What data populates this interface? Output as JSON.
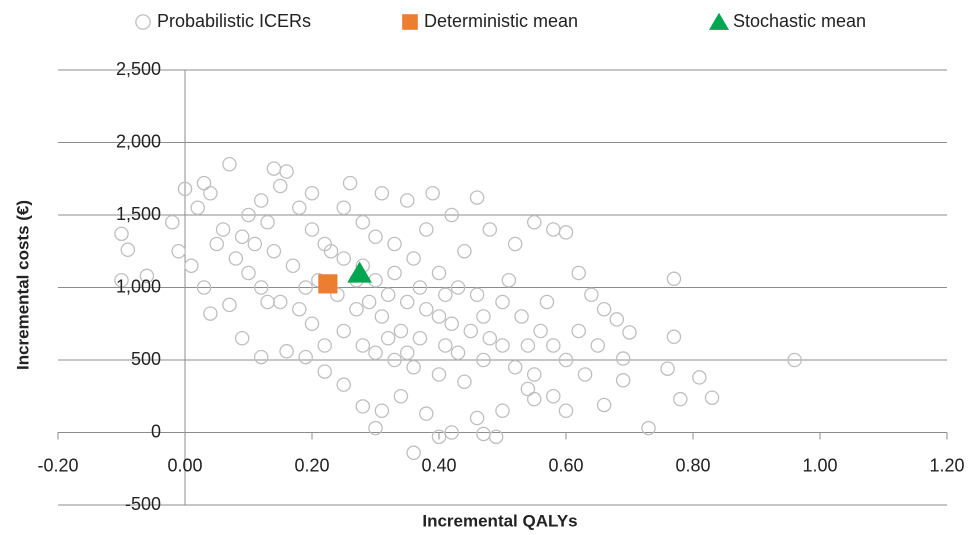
{
  "chart_data": {
    "type": "scatter",
    "x_label": "Incremental QALYs",
    "y_label": "Incremental costs (€)",
    "xlim": [
      -0.2,
      1.2
    ],
    "ylim": [
      -500,
      2500
    ],
    "xticks": [
      {
        "value": -0.2,
        "label": "-0.20"
      },
      {
        "value": 0,
        "label": "0.00"
      },
      {
        "value": 0.2,
        "label": "0.20"
      },
      {
        "value": 0.4,
        "label": "0.40"
      },
      {
        "value": 0.6,
        "label": "0.60"
      },
      {
        "value": 0.8,
        "label": "0.80"
      },
      {
        "value": 1.0,
        "label": "1.00"
      },
      {
        "value": 1.2,
        "label": "1.20"
      }
    ],
    "yticks": [
      -500,
      0,
      500,
      {
        "value": 1000,
        "label": "1,000"
      },
      {
        "value": 1500,
        "label": "1,500"
      },
      {
        "value": 2000,
        "label": "2,000"
      },
      {
        "value": 2500,
        "label": "2,500"
      }
    ],
    "grid": true,
    "legend": "top",
    "series": [
      {
        "name": "Probabilistic ICERs",
        "color": "#bfbfbf",
        "marker": "circle",
        "x": [
          0.1,
          0.12,
          0.15,
          0.13,
          0.18,
          0.2,
          0.22,
          0.25,
          0.28,
          0.3,
          0.32,
          0.35,
          0.38,
          0.4,
          0.42,
          0.45,
          0.48,
          0.5,
          0.05,
          0.08,
          0.1,
          0.12,
          0.15,
          0.18,
          0.2,
          0.25,
          0.28,
          0.3,
          0.33,
          0.36,
          0.4,
          0.44,
          0.2,
          0.25,
          0.28,
          0.3,
          0.33,
          0.36,
          0.4,
          0.43,
          0.46,
          0.5,
          0.53,
          0.56,
          0.58,
          0.6,
          0.02,
          0.04,
          0.06,
          0.09,
          0.14,
          0.17,
          0.21,
          0.24,
          0.27,
          0.31,
          0.34,
          0.37,
          0.41,
          0.43,
          0.47,
          0.52,
          0.55,
          0.16,
          0.14,
          0.26,
          0.31,
          0.35,
          0.39,
          0.46,
          0.42,
          0.48,
          0.52,
          0.55,
          0.58,
          0.6,
          0.62,
          0.64,
          0.66,
          0.68,
          0.62,
          0.65,
          0.63,
          0.6,
          0.58,
          0.54,
          0.5,
          0.46,
          0.42,
          0.38,
          0.34,
          0.31,
          0.28,
          0.25,
          0.22,
          0.19,
          0.16,
          0.12,
          0.09,
          0.07,
          0.04,
          0.03,
          0.01,
          -0.01,
          -0.02,
          0.0,
          0.03,
          -0.1,
          -0.1,
          -0.09,
          -0.06,
          0.07,
          0.3,
          0.36,
          0.4,
          0.49,
          0.47,
          0.55,
          0.66,
          0.69,
          0.69,
          0.7,
          0.73,
          0.76,
          0.77,
          0.77,
          0.78,
          0.81,
          0.83,
          0.96,
          0.13,
          0.22,
          0.35,
          0.44,
          0.38,
          0.27,
          0.33,
          0.19,
          0.11,
          0.23,
          0.29,
          0.41,
          0.37,
          0.47,
          0.51,
          0.57,
          0.54,
          0.32
        ],
        "values": [
          1500,
          1600,
          1700,
          1450,
          1550,
          1400,
          1300,
          1200,
          1150,
          1050,
          950,
          900,
          850,
          800,
          750,
          700,
          650,
          600,
          1300,
          1200,
          1100,
          1000,
          900,
          850,
          750,
          700,
          600,
          550,
          500,
          450,
          400,
          350,
          1650,
          1550,
          1450,
          1350,
          1300,
          1200,
          1100,
          1000,
          950,
          900,
          800,
          700,
          600,
          500,
          1550,
          1650,
          1400,
          1350,
          1250,
          1150,
          1050,
          950,
          850,
          800,
          700,
          650,
          600,
          550,
          500,
          450,
          400,
          1800,
          1820,
          1720,
          1650,
          1600,
          1650,
          1620,
          1500,
          1400,
          1300,
          1450,
          1400,
          1380,
          1100,
          950,
          850,
          780,
          700,
          600,
          400,
          150,
          250,
          300,
          150,
          100,
          0,
          130,
          250,
          150,
          180,
          330,
          420,
          520,
          560,
          520,
          650,
          880,
          820,
          1000,
          1150,
          1250,
          1450,
          1680,
          1720,
          1370,
          1050,
          1260,
          1080,
          1850,
          30,
          -140,
          -30,
          -30,
          -10,
          230,
          190,
          360,
          510,
          690,
          30,
          440,
          660,
          1060,
          230,
          380,
          240,
          500,
          900,
          600,
          550,
          1250,
          1400,
          1050,
          1100,
          1000,
          1300,
          1250,
          900,
          950,
          1000,
          800,
          1050,
          900,
          600,
          650
        ]
      },
      {
        "name": "Deterministic mean",
        "color": "#ed7d31",
        "marker": "square",
        "x": [
          0.225
        ],
        "values": [
          1025
        ]
      },
      {
        "name": "Stochastic mean",
        "color": "#00a650",
        "marker": "triangle",
        "x": [
          0.275
        ],
        "values": [
          1100
        ]
      }
    ]
  }
}
